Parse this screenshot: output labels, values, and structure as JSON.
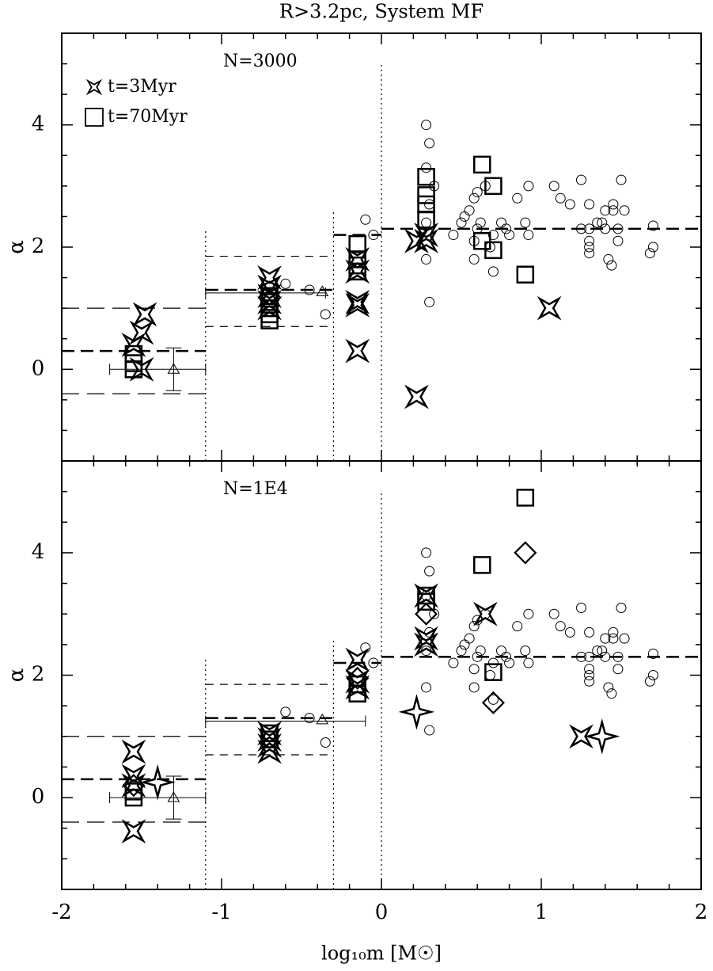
{
  "chart_data": [
    {
      "type": "scatter",
      "title": "R>3.2pc, System MF",
      "annotation": "N=3000",
      "y_label": "α",
      "xlim": [
        -2,
        2
      ],
      "ylim": [
        -1.5,
        5.5
      ],
      "xticks": [
        -2,
        -1,
        0,
        1,
        2
      ],
      "show_xtick_labels": false,
      "xminor_ticks": [
        -1.8,
        -1.6,
        -1.4,
        -1.2,
        -0.8,
        -0.6,
        -0.4,
        -0.2,
        0.2,
        0.4,
        0.6,
        0.8,
        1.2,
        1.4,
        1.6,
        1.8
      ],
      "yticks": [
        0,
        2,
        4
      ],
      "yminor_ticks": [
        -1,
        -0.5,
        0.5,
        1,
        1.5,
        2.5,
        3,
        3.5,
        4.5,
        5
      ],
      "series": [
        {
          "name": "t=3Myr",
          "marker": "star",
          "color": "#000000",
          "x": [
            -1.48,
            -1.5,
            -1.55,
            -1.5,
            -0.7,
            -0.7,
            -0.7,
            -0.7,
            -0.7,
            -0.15,
            -0.15,
            -0.15,
            -0.15,
            -0.15,
            0.22,
            0.28,
            0.28,
            0.22,
            1.05
          ],
          "values": [
            0.9,
            0.6,
            0.4,
            0.0,
            1.5,
            1.35,
            1.2,
            1.1,
            1.0,
            1.8,
            1.6,
            1.1,
            1.05,
            0.3,
            2.1,
            2.2,
            2.1,
            -0.45,
            1.0
          ]
        },
        {
          "name": "t=70Myr",
          "marker": "square",
          "color": "#000000",
          "x": [
            -1.55,
            -1.55,
            -1.55,
            -0.7,
            -0.7,
            -0.7,
            -0.7,
            -0.7,
            -0.15,
            -0.15,
            -0.15,
            -0.15,
            0.28,
            0.28,
            0.28,
            0.28,
            0.63,
            0.7,
            0.63,
            0.7,
            0.9
          ],
          "values": [
            0.25,
            0.1,
            0.0,
            1.2,
            1.1,
            1.0,
            0.9,
            0.8,
            2.05,
            1.8,
            1.7,
            1.6,
            3.15,
            2.85,
            2.7,
            2.45,
            3.35,
            3.0,
            2.1,
            1.95,
            1.55
          ]
        },
        {
          "marker": "circle",
          "color": "#000000",
          "x": [
            0.28,
            0.3,
            0.28,
            0.33,
            0.3,
            0.28,
            0.3,
            0.28,
            0.45,
            0.5,
            0.52,
            0.55,
            0.58,
            0.6,
            0.62,
            0.65,
            0.6,
            0.58,
            0.58,
            0.7,
            0.7,
            0.75,
            0.78,
            0.8,
            0.85,
            0.9,
            0.92,
            0.92,
            0.68,
            1.08,
            1.12,
            1.18,
            1.25,
            1.25,
            1.3,
            1.3,
            1.3,
            1.3,
            1.3,
            1.35,
            1.38,
            1.4,
            1.4,
            1.42,
            1.44,
            1.45,
            1.45,
            1.48,
            1.48,
            1.5,
            1.52,
            1.68,
            1.7,
            1.7,
            -0.05,
            -0.1,
            -0.6,
            -0.45,
            -0.35
          ],
          "values": [
            4.0,
            3.7,
            3.3,
            3.0,
            2.7,
            2.4,
            1.1,
            1.8,
            2.2,
            2.4,
            2.5,
            2.6,
            2.8,
            2.9,
            2.4,
            3.0,
            2.3,
            2.1,
            1.8,
            2.2,
            1.6,
            2.4,
            2.3,
            2.2,
            2.8,
            2.4,
            3.0,
            2.2,
            2.0,
            3.0,
            2.8,
            2.7,
            3.1,
            2.3,
            2.7,
            2.3,
            2.1,
            2.0,
            1.9,
            2.4,
            2.4,
            2.3,
            2.6,
            1.8,
            1.7,
            2.7,
            2.6,
            2.3,
            2.1,
            3.1,
            2.6,
            1.9,
            2.0,
            2.35,
            2.2,
            2.45,
            1.4,
            1.3,
            0.9
          ]
        },
        {
          "marker": "triangle",
          "color": "#000000",
          "x": [
            -1.3,
            -0.37
          ],
          "values": [
            0.0,
            1.27
          ],
          "yerr": [
            0.35,
            0
          ]
        }
      ],
      "hbars": [
        {
          "x": [
            -1.7,
            -1.1
          ],
          "y": 0.0
        },
        {
          "x": [
            -1.1,
            -0.35
          ],
          "y": 1.25
        }
      ],
      "hlines": [
        {
          "x": [
            -2,
            -1.1
          ],
          "y": 1.0,
          "style": "long"
        },
        {
          "x": [
            -2,
            -1.1
          ],
          "y": -0.4,
          "style": "long"
        },
        {
          "x": [
            -2,
            -1.1
          ],
          "y": 0.3,
          "style": "heavy"
        },
        {
          "x": [
            -1.1,
            -0.3
          ],
          "y": 1.85,
          "style": "short"
        },
        {
          "x": [
            -1.1,
            -0.3
          ],
          "y": 0.7,
          "style": "short"
        },
        {
          "x": [
            -1.1,
            -0.3
          ],
          "y": 1.3,
          "style": "heavy"
        },
        {
          "x": [
            -0.3,
            0
          ],
          "y": 2.2,
          "style": "heavy"
        },
        {
          "x": [
            0,
            2
          ],
          "y": 2.3,
          "style": "heavy"
        }
      ],
      "vlines": [
        {
          "x": -1.1,
          "y": 2.3
        },
        {
          "x": -0.3,
          "y": 2.6
        },
        {
          "x": 0,
          "y": 5.0
        }
      ]
    },
    {
      "type": "scatter",
      "annotation": "N=1E4",
      "x_label": "log₁₀m [M☉]",
      "y_label": "α",
      "xlim": [
        -2,
        2
      ],
      "ylim": [
        -1.5,
        5.5
      ],
      "xticks": [
        -2,
        -1,
        0,
        1,
        2
      ],
      "show_xtick_labels": true,
      "xminor_ticks": [
        -1.8,
        -1.6,
        -1.4,
        -1.2,
        -0.8,
        -0.6,
        -0.4,
        -0.2,
        0.2,
        0.4,
        0.6,
        0.8,
        1.2,
        1.4,
        1.6,
        1.8
      ],
      "yticks": [
        0,
        2,
        4
      ],
      "yminor_ticks": [
        -1,
        -0.5,
        0.5,
        1,
        1.5,
        2.5,
        3,
        3.5,
        4.5,
        5
      ],
      "series": [
        {
          "marker": "star",
          "color": "#000000",
          "x": [
            -1.55,
            -1.55,
            -1.55,
            -1.55,
            -0.7,
            -0.7,
            -0.7,
            -0.7,
            -0.15,
            -0.15,
            -0.15,
            0.28,
            0.28,
            0.28,
            0.65,
            1.25
          ],
          "values": [
            0.75,
            0.35,
            0.2,
            -0.55,
            1.05,
            0.95,
            0.85,
            0.75,
            2.25,
            1.9,
            1.8,
            2.6,
            2.5,
            3.3,
            3.0,
            1.0
          ]
        },
        {
          "marker": "star4",
          "color": "#000000",
          "x": [
            -1.4,
            0.22,
            1.38
          ],
          "values": [
            0.25,
            1.4,
            1.0
          ]
        },
        {
          "marker": "square",
          "color": "#000000",
          "x": [
            -1.55,
            -1.55,
            -0.7,
            -0.7,
            -0.15,
            -0.15,
            0.28,
            0.28,
            0.63,
            0.9,
            0.7
          ],
          "values": [
            0.1,
            0.0,
            1.05,
            0.95,
            1.85,
            1.7,
            3.3,
            3.2,
            3.8,
            4.9,
            2.05
          ]
        },
        {
          "marker": "diamond",
          "color": "#000000",
          "x": [
            0.9,
            0.7,
            0.28,
            -1.55,
            -0.15
          ],
          "values": [
            4.0,
            1.55,
            3.0,
            0.2,
            1.95
          ]
        },
        {
          "marker": "circle",
          "color": "#000000",
          "x": [
            0.28,
            0.3,
            0.28,
            0.33,
            0.3,
            0.28,
            0.3,
            0.28,
            0.45,
            0.5,
            0.52,
            0.55,
            0.58,
            0.6,
            0.62,
            0.65,
            0.6,
            0.58,
            0.58,
            0.7,
            0.7,
            0.75,
            0.78,
            0.8,
            0.85,
            0.9,
            0.92,
            0.92,
            0.68,
            1.08,
            1.12,
            1.18,
            1.25,
            1.25,
            1.3,
            1.3,
            1.3,
            1.3,
            1.3,
            1.35,
            1.38,
            1.4,
            1.4,
            1.42,
            1.44,
            1.45,
            1.45,
            1.48,
            1.48,
            1.5,
            1.52,
            1.68,
            1.7,
            1.7,
            -0.05,
            -0.1,
            -0.6,
            -0.45,
            -0.35
          ],
          "values": [
            4.0,
            3.7,
            3.3,
            3.0,
            2.7,
            2.4,
            1.1,
            1.8,
            2.2,
            2.4,
            2.5,
            2.6,
            2.8,
            2.9,
            2.4,
            3.0,
            2.3,
            2.1,
            1.8,
            2.2,
            1.6,
            2.4,
            2.3,
            2.2,
            2.8,
            2.4,
            3.0,
            2.2,
            2.0,
            3.0,
            2.8,
            2.7,
            3.1,
            2.3,
            2.7,
            2.3,
            2.1,
            2.0,
            1.9,
            2.4,
            2.4,
            2.3,
            2.6,
            1.8,
            1.7,
            2.7,
            2.6,
            2.3,
            2.1,
            3.1,
            2.6,
            1.9,
            2.0,
            2.35,
            2.2,
            2.45,
            1.4,
            1.3,
            0.9
          ]
        },
        {
          "marker": "triangle",
          "color": "#000000",
          "x": [
            -1.3,
            -0.37
          ],
          "values": [
            0.0,
            1.27
          ],
          "yerr": [
            0.35,
            0
          ]
        }
      ],
      "hbars": [
        {
          "x": [
            -1.7,
            -1.1
          ],
          "y": 0.0
        },
        {
          "x": [
            -1.1,
            -0.1
          ],
          "y": 1.25
        }
      ],
      "hlines": [
        {
          "x": [
            -2,
            -1.1
          ],
          "y": 1.0,
          "style": "long"
        },
        {
          "x": [
            -2,
            -1.1
          ],
          "y": -0.4,
          "style": "long"
        },
        {
          "x": [
            -2,
            -1.1
          ],
          "y": 0.3,
          "style": "heavy"
        },
        {
          "x": [
            -1.1,
            -0.3
          ],
          "y": 1.85,
          "style": "short"
        },
        {
          "x": [
            -1.1,
            -0.3
          ],
          "y": 0.7,
          "style": "short"
        },
        {
          "x": [
            -1.1,
            -0.3
          ],
          "y": 1.3,
          "style": "heavy"
        },
        {
          "x": [
            -0.3,
            0
          ],
          "y": 2.2,
          "style": "heavy"
        },
        {
          "x": [
            0,
            2
          ],
          "y": 2.3,
          "style": "heavy"
        }
      ],
      "vlines": [
        {
          "x": -1.1,
          "y": 2.3
        },
        {
          "x": -0.3,
          "y": 2.6
        },
        {
          "x": 0,
          "y": 5.0
        }
      ]
    }
  ]
}
